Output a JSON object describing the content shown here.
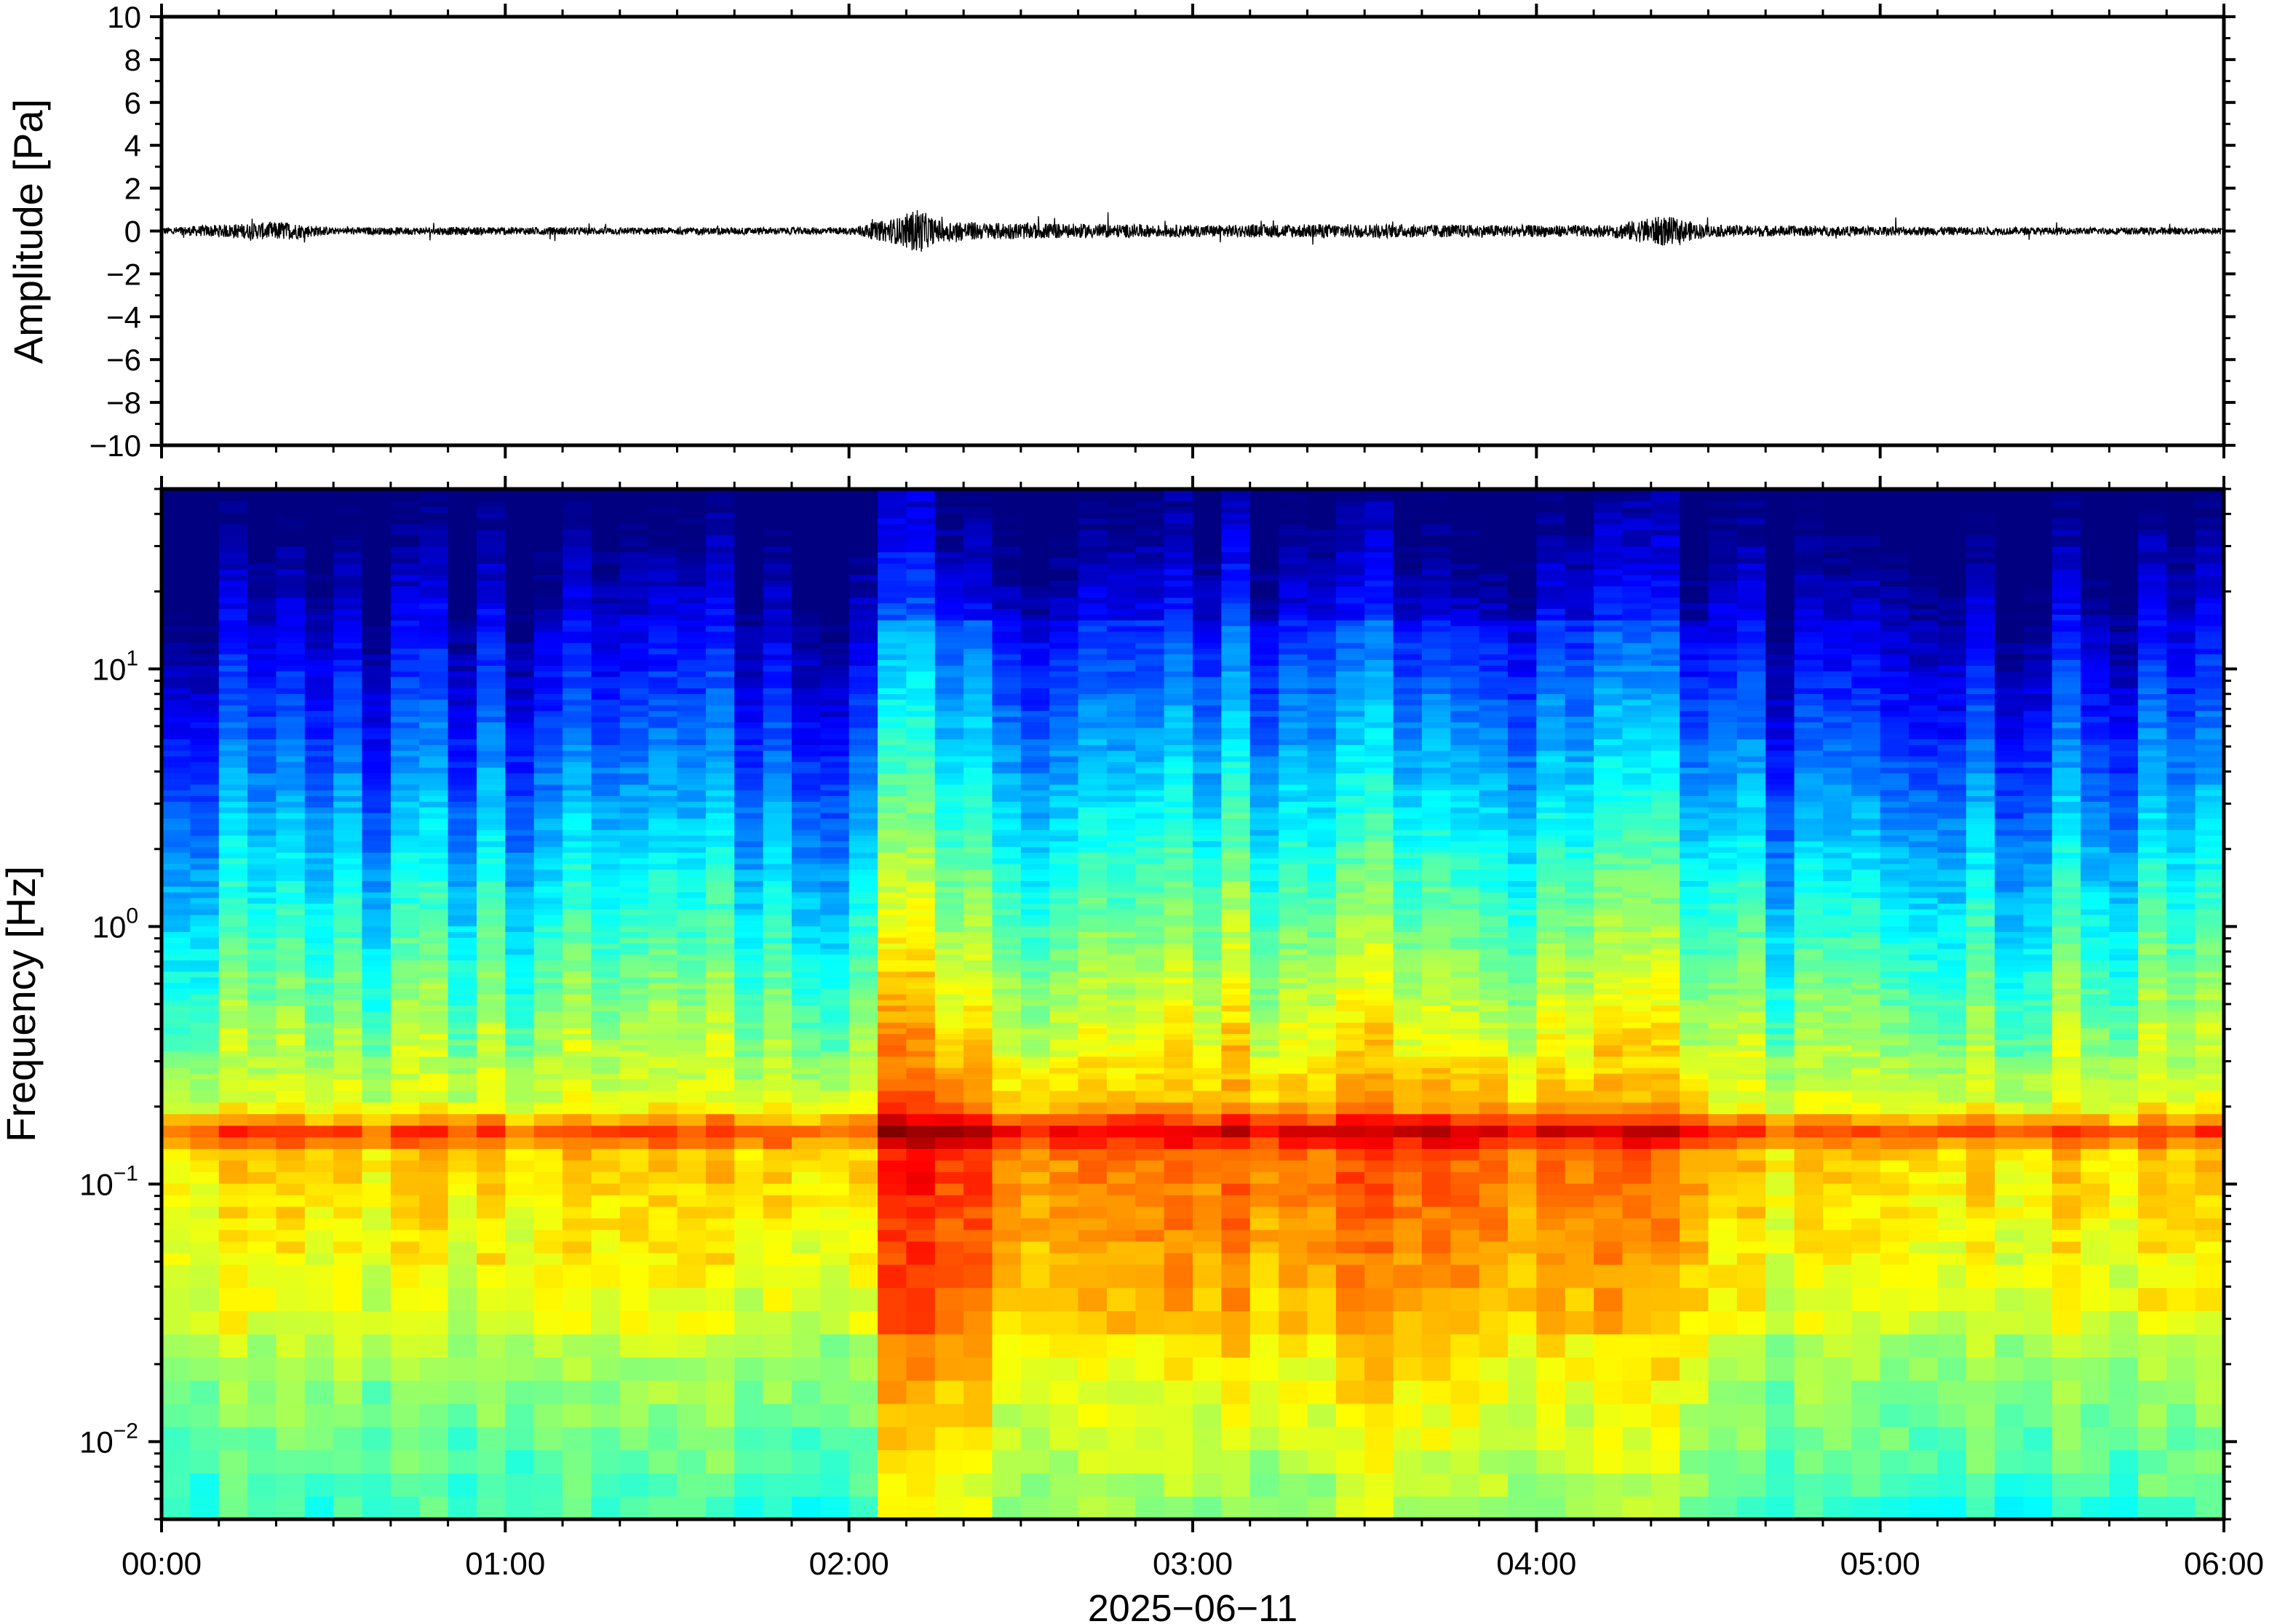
{
  "chart_data": [
    {
      "type": "line",
      "ylabel": "Amplitude [Pa]",
      "ylim": [
        -10,
        10
      ],
      "yticks": [
        10,
        8,
        6,
        4,
        2,
        0,
        -2,
        -4,
        -6,
        -8,
        -10
      ],
      "ytick_labels": [
        "10",
        "8",
        "6",
        "4",
        "2",
        "0",
        "−2",
        "−4",
        "−6",
        "−8",
        "−10"
      ],
      "x_range_hours": [
        0,
        6
      ],
      "grid": false,
      "series": [
        {
          "x_hours": [
            0,
            0.35,
            0.5,
            1.0,
            1.5,
            2.0,
            2.05,
            2.1,
            2.15,
            2.2,
            2.25,
            2.3,
            2.4,
            2.5,
            2.7,
            3.0,
            3.4,
            3.7,
            4.0,
            4.2,
            4.37,
            4.5,
            5.0,
            5.5,
            6.0
          ],
          "envelope_pa": [
            0.3,
            0.8,
            0.3,
            0.35,
            0.3,
            0.3,
            0.6,
            0.9,
            1.2,
            2.0,
            1.0,
            0.9,
            0.7,
            0.7,
            0.6,
            0.5,
            0.6,
            0.55,
            0.5,
            0.5,
            1.3,
            0.5,
            0.4,
            0.3,
            0.3
          ]
        }
      ]
    },
    {
      "type": "heatmap",
      "ylabel": "Frequency [Hz]",
      "yscale": "log",
      "ylim": [
        0.005,
        50
      ],
      "yticks": [
        0.01,
        0.1,
        1,
        10
      ],
      "ytick_labels": [
        {
          "base": "10",
          "exp": "−2"
        },
        {
          "base": "10",
          "exp": "−1"
        },
        {
          "base": "10",
          "exp": "0"
        },
        {
          "base": "10",
          "exp": "1"
        }
      ],
      "xlabel": "2025−06−11",
      "xtick_labels": [
        "00:00",
        "01:00",
        "02:00",
        "03:00",
        "04:00",
        "05:00",
        "06:00"
      ],
      "x_range_hours": [
        0,
        6
      ],
      "colormap": "jet",
      "features": [
        {
          "description": "microseism band",
          "frequency_hz": 0.16
        },
        {
          "description": "energetic episode",
          "time_hours": [
            2.1,
            2.4
          ]
        }
      ]
    }
  ],
  "colors": {
    "axis": "#000000",
    "trace": "#000000",
    "colormap_low": "#00008f",
    "colormap_high": "#b00000"
  }
}
